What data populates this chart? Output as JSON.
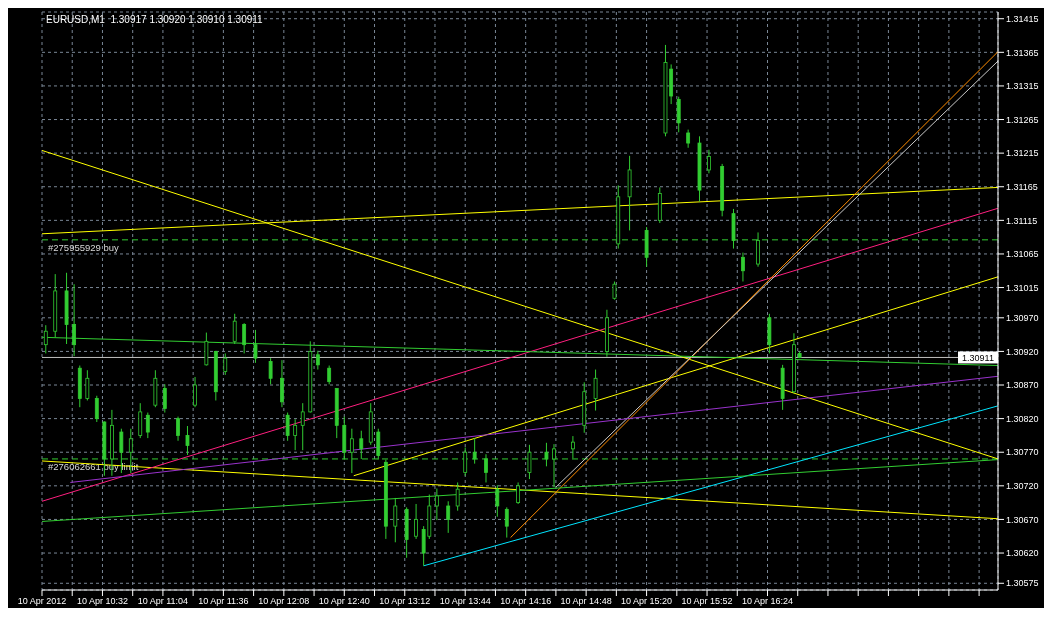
{
  "chart_data": {
    "type": "candlestick",
    "color": "#32cd32",
    "annotations": [
      "EURUSD,M1  1.30917 1.30920 1.30910 1.30911"
    ],
    "x": [
      "2012-04-10T10:02",
      "2012-04-10T10:07",
      "2012-04-10T10:13",
      "2012-04-10T10:17",
      "2012-04-10T10:20",
      "2012-04-10T10:24",
      "2012-04-10T10:29",
      "2012-04-10T10:33",
      "2012-04-10T10:37",
      "2012-04-10T10:42",
      "2012-04-10T10:47",
      "2012-04-10T10:52",
      "2012-04-10T10:56",
      "2012-04-10T11:00",
      "2012-04-10T11:05",
      "2012-04-10T11:12",
      "2012-04-10T11:17",
      "2012-04-10T11:21",
      "2012-04-10T11:27",
      "2012-04-10T11:32",
      "2012-04-10T11:37",
      "2012-04-10T11:42",
      "2012-04-10T11:47",
      "2012-04-10T11:53",
      "2012-04-10T12:01",
      "2012-04-10T12:07",
      "2012-04-10T12:10",
      "2012-04-10T12:14",
      "2012-04-10T12:18",
      "2012-04-10T12:22",
      "2012-04-10T12:26",
      "2012-04-10T12:32",
      "2012-04-10T12:36",
      "2012-04-10T12:40",
      "2012-04-10T12:44",
      "2012-04-10T12:49",
      "2012-04-10T12:54",
      "2012-04-10T12:58",
      "2012-04-10T13:02",
      "2012-04-10T13:07",
      "2012-04-10T13:13",
      "2012-04-10T13:18",
      "2012-04-10T13:22",
      "2012-04-10T13:25",
      "2012-04-10T13:29",
      "2012-04-10T13:35",
      "2012-04-10T13:40",
      "2012-04-10T13:44",
      "2012-04-10T13:49",
      "2012-04-10T13:55",
      "2012-04-10T14:01",
      "2012-04-10T14:06",
      "2012-04-10T14:12",
      "2012-04-10T14:18",
      "2012-04-10T14:27",
      "2012-04-10T14:31",
      "2012-04-10T14:41",
      "2012-04-10T14:47",
      "2012-04-10T14:53",
      "2012-04-10T14:59",
      "2012-04-10T15:03",
      "2012-04-10T15:05",
      "2012-04-10T15:11",
      "2012-04-10T15:20",
      "2012-04-10T15:27",
      "2012-04-10T15:30",
      "2012-04-10T15:33",
      "2012-04-10T15:37",
      "2012-04-10T15:42",
      "2012-04-10T15:48",
      "2012-04-10T15:53",
      "2012-04-10T16:00",
      "2012-04-10T16:06",
      "2012-04-10T16:11",
      "2012-04-10T16:19",
      "2012-04-10T16:25",
      "2012-04-10T16:32",
      "2012-04-10T16:38",
      "2012-04-10T16:41"
    ],
    "ohlc": [
      [
        1.3093,
        1.30959,
        1.30917,
        1.3095
      ],
      [
        1.3095,
        1.31035,
        1.30941,
        1.3101
      ],
      [
        1.3101,
        1.31037,
        1.30931,
        1.3096
      ],
      [
        1.3096,
        1.3102,
        1.30913,
        1.3093
      ],
      [
        1.30895,
        1.30899,
        1.30837,
        1.3085
      ],
      [
        1.3085,
        1.30892,
        1.30847,
        1.3088
      ],
      [
        1.3085,
        1.30854,
        1.30815,
        1.3082
      ],
      [
        1.30815,
        1.30816,
        1.30735,
        1.3076
      ],
      [
        1.3076,
        1.30833,
        1.30735,
        1.3081
      ],
      [
        1.308,
        1.30805,
        1.30739,
        1.3077
      ],
      [
        1.3077,
        1.30805,
        1.30739,
        1.3079
      ],
      [
        1.30795,
        1.30843,
        1.30791,
        1.3083
      ],
      [
        1.30825,
        1.30829,
        1.30791,
        1.308
      ],
      [
        1.3084,
        1.30892,
        1.30837,
        1.3088
      ],
      [
        1.30865,
        1.30871,
        1.30829,
        1.30835
      ],
      [
        1.3082,
        1.30823,
        1.30787,
        1.30795
      ],
      [
        1.30795,
        1.30809,
        1.30766,
        1.3078
      ],
      [
        1.3084,
        1.30882,
        1.30837,
        1.3087
      ],
      [
        1.309,
        1.30948,
        1.30899,
        1.30935
      ],
      [
        1.3092,
        1.30921,
        1.30847,
        1.3086
      ],
      [
        1.3089,
        1.30917,
        1.30885,
        1.3091
      ],
      [
        1.30935,
        1.30976,
        1.30931,
        1.30965
      ],
      [
        1.3096,
        1.30962,
        1.30917,
        1.3093
      ],
      [
        1.3093,
        1.30952,
        1.30903,
        1.3091
      ],
      [
        1.30905,
        1.3091,
        1.30871,
        1.3088
      ],
      [
        1.3088,
        1.30907,
        1.30837,
        1.30845
      ],
      [
        1.30825,
        1.30829,
        1.30787,
        1.30795
      ],
      [
        1.30795,
        1.30819,
        1.30773,
        1.3081
      ],
      [
        1.3081,
        1.30843,
        1.30773,
        1.3083
      ],
      [
        1.3083,
        1.30935,
        1.30829,
        1.3092
      ],
      [
        1.30915,
        1.30921,
        1.30893,
        1.309
      ],
      [
        1.30895,
        1.30899,
        1.30871,
        1.30875
      ],
      [
        1.30865,
        1.30865,
        1.30791,
        1.3081
      ],
      [
        1.3081,
        1.30823,
        1.30759,
        1.3077
      ],
      [
        1.3077,
        1.30805,
        1.30739,
        1.3079
      ],
      [
        1.3079,
        1.30802,
        1.3076,
        1.30775
      ],
      [
        1.30785,
        1.30843,
        1.30781,
        1.3083
      ],
      [
        1.308,
        1.30805,
        1.30759,
        1.30765
      ],
      [
        1.30755,
        1.30759,
        1.30641,
        1.3066
      ],
      [
        1.3066,
        1.30702,
        1.30636,
        1.3069
      ],
      [
        1.30685,
        1.30688,
        1.30613,
        1.3064
      ],
      [
        1.30645,
        1.30693,
        1.30641,
        1.3067
      ],
      [
        1.30655,
        1.3066,
        1.30601,
        1.3062
      ],
      [
        1.30645,
        1.30707,
        1.30641,
        1.3069
      ],
      [
        1.3069,
        1.30716,
        1.30669,
        1.30705
      ],
      [
        1.3069,
        1.30697,
        1.3065,
        1.3067
      ],
      [
        1.3069,
        1.30725,
        1.30683,
        1.30715
      ],
      [
        1.3074,
        1.30777,
        1.30735,
        1.3077
      ],
      [
        1.3077,
        1.30791,
        1.30753,
        1.3076
      ],
      [
        1.3076,
        1.30767,
        1.30725,
        1.3074
      ],
      [
        1.30715,
        1.30721,
        1.30674,
        1.3069
      ],
      [
        1.30685,
        1.30688,
        1.30643,
        1.3066
      ],
      [
        1.30695,
        1.30725,
        1.30693,
        1.3072
      ],
      [
        1.3074,
        1.30781,
        1.3073,
        1.3077
      ],
      [
        1.3077,
        1.30784,
        1.30749,
        1.3076
      ],
      [
        1.3076,
        1.30782,
        1.30718,
        1.30775
      ],
      [
        1.30775,
        1.30794,
        1.30761,
        1.30785
      ],
      [
        1.3081,
        1.30874,
        1.30799,
        1.3086
      ],
      [
        1.3085,
        1.30893,
        1.30832,
        1.3088
      ],
      [
        1.3092,
        1.30982,
        1.30912,
        1.3097
      ],
      [
        1.30999,
        1.31024,
        1.30997,
        1.3102
      ],
      [
        1.3108,
        1.31167,
        1.31073,
        1.3115
      ],
      [
        1.3115,
        1.31211,
        1.311,
        1.3119
      ],
      [
        1.311,
        1.31105,
        1.31046,
        1.3106
      ],
      [
        1.31115,
        1.31164,
        1.31111,
        1.31155
      ],
      [
        1.31245,
        1.31376,
        1.3124,
        1.3135
      ],
      [
        1.3134,
        1.31347,
        1.31288,
        1.313
      ],
      [
        1.31295,
        1.31299,
        1.31246,
        1.3126
      ],
      [
        1.31245,
        1.3125,
        1.31223,
        1.3123
      ],
      [
        1.3123,
        1.3124,
        1.31143,
        1.3116
      ],
      [
        1.3119,
        1.3122,
        1.31185,
        1.3121
      ],
      [
        1.31195,
        1.31199,
        1.31121,
        1.3113
      ],
      [
        1.31125,
        1.31132,
        1.31073,
        1.31085
      ],
      [
        1.3106,
        1.31067,
        1.31024,
        1.3104
      ],
      [
        1.3105,
        1.31097,
        1.31046,
        1.31085
      ],
      [
        1.3097,
        1.30976,
        1.30917,
        1.3093
      ],
      [
        1.30895,
        1.309,
        1.30833,
        1.3085
      ],
      [
        1.3086,
        1.30947,
        1.30858,
        1.3093
      ],
      [
        1.30917,
        1.3092,
        1.3091,
        1.30911
      ]
    ],
    "series": [
      {
        "type": "line",
        "color": "#ffff00",
        "line_style": "solid",
        "x": [
          "2012-04-10T10:00",
          "2012-04-10T18:26"
        ],
        "values": [
          1.31219,
          1.3076
        ]
      },
      {
        "type": "line",
        "color": "#ffff00",
        "line_style": "solid",
        "x": [
          "2012-04-10T10:00",
          "2012-04-10T18:26"
        ],
        "values": [
          1.31095,
          1.31164
        ]
      },
      {
        "type": "line",
        "color": "#ffff00",
        "line_style": "solid",
        "x": [
          "2012-04-10T10:00",
          "2012-04-10T18:26"
        ],
        "values": [
          1.30757,
          1.30671
        ]
      },
      {
        "type": "line",
        "color": "#ffff00",
        "line_style": "solid",
        "x": [
          "2012-04-10T12:45",
          "2012-04-10T18:26"
        ],
        "values": [
          1.30735,
          1.31031
        ]
      },
      {
        "type": "line",
        "color": "#ff1f7f",
        "line_style": "solid",
        "x": [
          "2012-04-10T10:00",
          "2012-04-10T18:26"
        ],
        "values": [
          1.30697,
          1.31133
        ]
      },
      {
        "type": "line",
        "color": "#ff8c00",
        "line_style": "solid",
        "x": [
          "2012-04-10T14:08",
          "2012-04-10T18:26"
        ],
        "values": [
          1.30643,
          1.31366
        ]
      },
      {
        "type": "line",
        "color": "#c8c8c8",
        "line_style": "solid",
        "x": [
          "2012-04-10T14:32",
          "2012-04-10T18:26"
        ],
        "values": [
          1.30718,
          1.31352
        ]
      },
      {
        "type": "line",
        "color": "#00e5ff",
        "line_style": "solid",
        "x": [
          "2012-04-10T13:22",
          "2012-04-10T18:26"
        ],
        "values": [
          1.30601,
          1.30839
        ]
      },
      {
        "type": "line",
        "color": "#9932cc",
        "line_style": "solid",
        "x": [
          "2012-04-10T10:15",
          "2012-04-10T18:26"
        ],
        "values": [
          1.30725,
          1.30883
        ]
      },
      {
        "type": "line",
        "color": "#32cd32",
        "line_style": "solid",
        "x": [
          "2012-04-10T10:00",
          "2012-04-10T18:26"
        ],
        "values": [
          1.30941,
          1.30899
        ]
      },
      {
        "type": "line",
        "color": "#32cd32",
        "line_style": "solid",
        "x": [
          "2012-04-10T10:00",
          "2012-04-10T18:26"
        ],
        "values": [
          1.30667,
          1.30759
        ]
      }
    ],
    "ref_lines": [
      {
        "axis": "y",
        "value": 1.31086,
        "label": "#275955929 buy",
        "color": "#32cd32",
        "line_style": "dashed"
      },
      {
        "axis": "y",
        "value": 1.3076,
        "label": "#276062661 buy limit",
        "color": "#32cd32",
        "line_style": "dashed"
      },
      {
        "axis": "y",
        "value": 1.30911,
        "label": "1.30911",
        "color": "#c0c0c0",
        "line_style": "solid"
      }
    ],
    "xlim": [
      "2012-04-10T10:00",
      "2012-04-10T18:26"
    ],
    "xticks": [
      {
        "value": "2012-04-10T10:00",
        "label": "10 Apr 2012"
      },
      {
        "value": "2012-04-10T10:16",
        "label": null
      },
      {
        "value": "2012-04-10T10:32",
        "label": "10 Apr 10:32"
      },
      {
        "value": "2012-04-10T10:48",
        "label": null
      },
      {
        "value": "2012-04-10T11:04",
        "label": "10 Apr 11:04"
      },
      {
        "value": "2012-04-10T11:20",
        "label": null
      },
      {
        "value": "2012-04-10T11:36",
        "label": "10 Apr 11:36"
      },
      {
        "value": "2012-04-10T11:52",
        "label": null
      },
      {
        "value": "2012-04-10T12:08",
        "label": "10 Apr 12:08"
      },
      {
        "value": "2012-04-10T12:24",
        "label": null
      },
      {
        "value": "2012-04-10T12:40",
        "label": "10 Apr 12:40"
      },
      {
        "value": "2012-04-10T12:56",
        "label": null
      },
      {
        "value": "2012-04-10T13:12",
        "label": "10 Apr 13:12"
      },
      {
        "value": "2012-04-10T13:28",
        "label": null
      },
      {
        "value": "2012-04-10T13:44",
        "label": "10 Apr 13:44"
      },
      {
        "value": "2012-04-10T14:00",
        "label": null
      },
      {
        "value": "2012-04-10T14:16",
        "label": "10 Apr 14:16"
      },
      {
        "value": "2012-04-10T14:32",
        "label": null
      },
      {
        "value": "2012-04-10T14:48",
        "label": "10 Apr 14:48"
      },
      {
        "value": "2012-04-10T15:04",
        "label": null
      },
      {
        "value": "2012-04-10T15:20",
        "label": "10 Apr 15:20"
      },
      {
        "value": "2012-04-10T15:36",
        "label": null
      },
      {
        "value": "2012-04-10T15:52",
        "label": "10 Apr 15:52"
      },
      {
        "value": "2012-04-10T16:08",
        "label": null
      },
      {
        "value": "2012-04-10T16:24",
        "label": "10 Apr 16:24"
      },
      {
        "value": "2012-04-10T16:40",
        "label": null
      },
      {
        "value": "2012-04-10T16:56",
        "label": null
      },
      {
        "value": "2012-04-10T17:12",
        "label": null
      },
      {
        "value": "2012-04-10T17:28",
        "label": null
      },
      {
        "value": "2012-04-10T17:44",
        "label": null
      },
      {
        "value": "2012-04-10T18:00",
        "label": null
      },
      {
        "value": "2012-04-10T18:16",
        "label": null
      }
    ],
    "ylim": [
      1.30565,
      1.31425
    ],
    "yticks": [
      1.31415,
      1.31365,
      1.31315,
      1.31265,
      1.31215,
      1.31165,
      1.31115,
      1.31065,
      1.31015,
      {
        "value": 1.3097,
        "label": "1.30970"
      },
      {
        "value": 1.3092,
        "label": "1.30920"
      },
      {
        "value": 1.3087,
        "label": "1.30870"
      },
      {
        "value": 1.3082,
        "label": "1.30820"
      },
      {
        "value": 1.3077,
        "label": "1.30770"
      },
      {
        "value": 1.3072,
        "label": "1.30720"
      },
      {
        "value": 1.3067,
        "label": "1.30670"
      },
      {
        "value": 1.3062,
        "label": "1.30620"
      },
      1.30575
    ],
    "grid": true
  }
}
